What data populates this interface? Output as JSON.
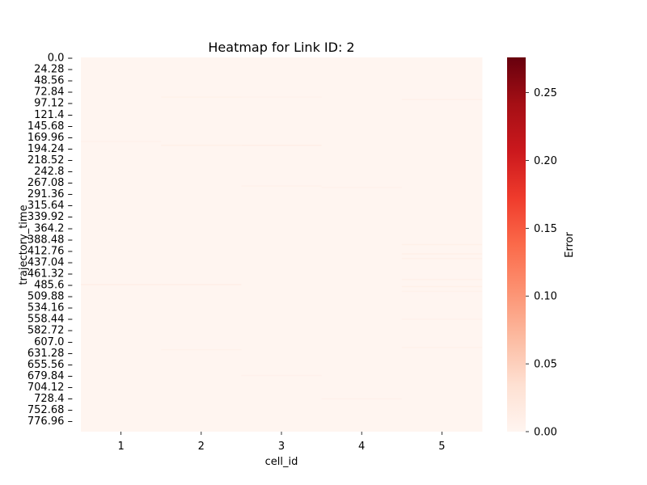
{
  "chart_data": {
    "type": "heatmap",
    "title": "Heatmap for Link ID: 2",
    "xlabel": "cell_id",
    "ylabel": "trajectory_time",
    "x_categories": [
      "1",
      "2",
      "3",
      "4",
      "5"
    ],
    "y_tick_labels": [
      "0.0",
      "24.28",
      "48.56",
      "72.84",
      "97.12",
      "121.4",
      "145.68",
      "169.96",
      "194.24",
      "218.52",
      "242.8",
      "267.08",
      "291.36",
      "315.64",
      "339.92",
      "364.2",
      "388.48",
      "412.76",
      "437.04",
      "461.32",
      "485.6",
      "509.88",
      "534.16",
      "558.44",
      "582.72",
      "607.0",
      "631.28",
      "655.56",
      "679.84",
      "704.12",
      "728.4",
      "752.68",
      "776.96"
    ],
    "y_range": [
      0,
      800
    ],
    "colorbar": {
      "label": "Error",
      "range": [
        0,
        0.276
      ],
      "ticks": [
        "0.00",
        "0.05",
        "0.10",
        "0.15",
        "0.20",
        "0.25"
      ],
      "tick_values": [
        0,
        0.05,
        0.1,
        0.15,
        0.2,
        0.25
      ],
      "colormap": "Reds",
      "stops": [
        "#fff5f0",
        "#fee0d2",
        "#fcbba1",
        "#fc9272",
        "#fb6a4a",
        "#ef3b2c",
        "#cb181d",
        "#a50f15",
        "#67000d"
      ]
    },
    "baseline_value": 0.0,
    "streaks": [
      {
        "cell": "1",
        "t": 485.6,
        "value": 0.012
      },
      {
        "cell": "2",
        "t": 485.6,
        "value": 0.012
      },
      {
        "cell": "2",
        "t": 188.0,
        "value": 0.01
      },
      {
        "cell": "3",
        "t": 188.0,
        "value": 0.012
      },
      {
        "cell": "2",
        "t": 85.0,
        "value": 0.007
      },
      {
        "cell": "3",
        "t": 85.0,
        "value": 0.006
      },
      {
        "cell": "5",
        "t": 90.0,
        "value": 0.008
      },
      {
        "cell": "3",
        "t": 275.0,
        "value": 0.007
      },
      {
        "cell": "4",
        "t": 278.0,
        "value": 0.006
      },
      {
        "cell": "5",
        "t": 400.0,
        "value": 0.009
      },
      {
        "cell": "5",
        "t": 420.0,
        "value": 0.01
      },
      {
        "cell": "5",
        "t": 430.0,
        "value": 0.009
      },
      {
        "cell": "5",
        "t": 475.0,
        "value": 0.008
      },
      {
        "cell": "5",
        "t": 490.0,
        "value": 0.009
      },
      {
        "cell": "5",
        "t": 500.0,
        "value": 0.007
      },
      {
        "cell": "5",
        "t": 620.0,
        "value": 0.007
      },
      {
        "cell": "2",
        "t": 625.0,
        "value": 0.007
      },
      {
        "cell": "3",
        "t": 680.0,
        "value": 0.006
      },
      {
        "cell": "4",
        "t": 730.0,
        "value": 0.006
      },
      {
        "cell": "1",
        "t": 180.0,
        "value": 0.006
      },
      {
        "cell": "5",
        "t": 560.0,
        "value": 0.006
      }
    ]
  }
}
